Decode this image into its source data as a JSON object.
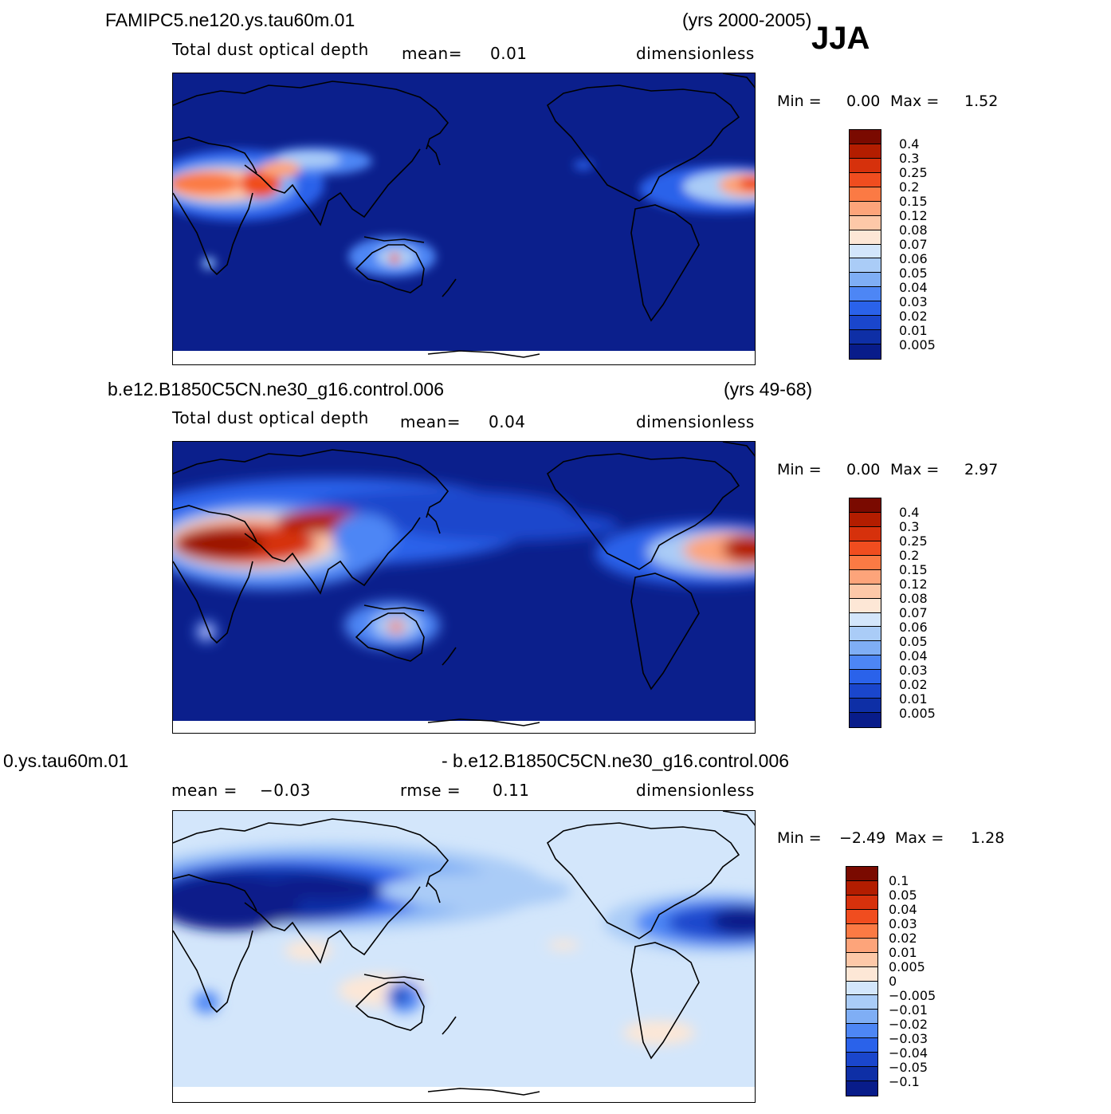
{
  "season": "JJA",
  "panels": [
    {
      "case_name": "FAMIPC5.ne120.ys.tau60m.01",
      "years": "(yrs 2000-2005)",
      "variable": "Total dust optical depth",
      "stat1_label": "mean=",
      "stat1_value": "0.01",
      "units": "dimensionless",
      "min_label": "Min =",
      "min_value": "0.00",
      "max_label": "Max =",
      "max_value": "1.52",
      "level_labels": [
        "0.4",
        "0.3",
        "0.25",
        "0.2",
        "0.15",
        "0.12",
        "0.08",
        "0.07",
        "0.06",
        "0.05",
        "0.04",
        "0.03",
        "0.02",
        "0.01",
        "0.005"
      ]
    },
    {
      "case_name": "b.e12.B1850C5CN.ne30_g16.control.006",
      "years": "(yrs 49-68)",
      "variable": "Total dust optical depth",
      "stat1_label": "mean=",
      "stat1_value": "0.04",
      "units": "dimensionless",
      "min_label": "Min =",
      "min_value": "0.00",
      "max_label": "Max =",
      "max_value": "2.97",
      "level_labels": [
        "0.4",
        "0.3",
        "0.25",
        "0.2",
        "0.15",
        "0.12",
        "0.08",
        "0.07",
        "0.06",
        "0.05",
        "0.04",
        "0.03",
        "0.02",
        "0.01",
        "0.005"
      ]
    },
    {
      "case_name_left": "0.ys.tau60m.01",
      "case_name_right": "- b.e12.B1850C5CN.ne30_g16.control.006",
      "stat1_label": "mean =",
      "stat1_value": "−0.03",
      "stat2_label": "rmse =",
      "stat2_value": "0.11",
      "units": "dimensionless",
      "min_label": "Min =",
      "min_value": "−2.49",
      "max_label": "Max =",
      "max_value": "1.28",
      "level_labels": [
        "0.1",
        "0.05",
        "0.04",
        "0.03",
        "0.02",
        "0.01",
        "0.005",
        "0",
        "−0.005",
        "−0.01",
        "−0.02",
        "−0.03",
        "−0.04",
        "−0.05",
        "−0.1"
      ]
    }
  ],
  "colors": {
    "abs_scale": [
      "#7a0a00",
      "#b31d00",
      "#d6310c",
      "#f04d1f",
      "#fb7a44",
      "#fda47a",
      "#fdc8a8",
      "#fde7d6",
      "#d3e6fb",
      "#aaccf7",
      "#7faef5",
      "#4d86f5",
      "#2a62ea",
      "#1a46cc",
      "#0e2fa6",
      "#081c8a"
    ],
    "diff_scale": [
      "#7a0a00",
      "#b31d00",
      "#d6310c",
      "#f04d1f",
      "#fb7a44",
      "#fda47a",
      "#fdc8a8",
      "#fde7d6",
      "#d3e6fb",
      "#aaccf7",
      "#7faef5",
      "#4d86f5",
      "#2a62ea",
      "#1a46cc",
      "#0e2fa6",
      "#081c8a"
    ],
    "abs_background": "#0b1f8c",
    "diff_background": "#d3e6fb",
    "coastline": "#000000"
  }
}
